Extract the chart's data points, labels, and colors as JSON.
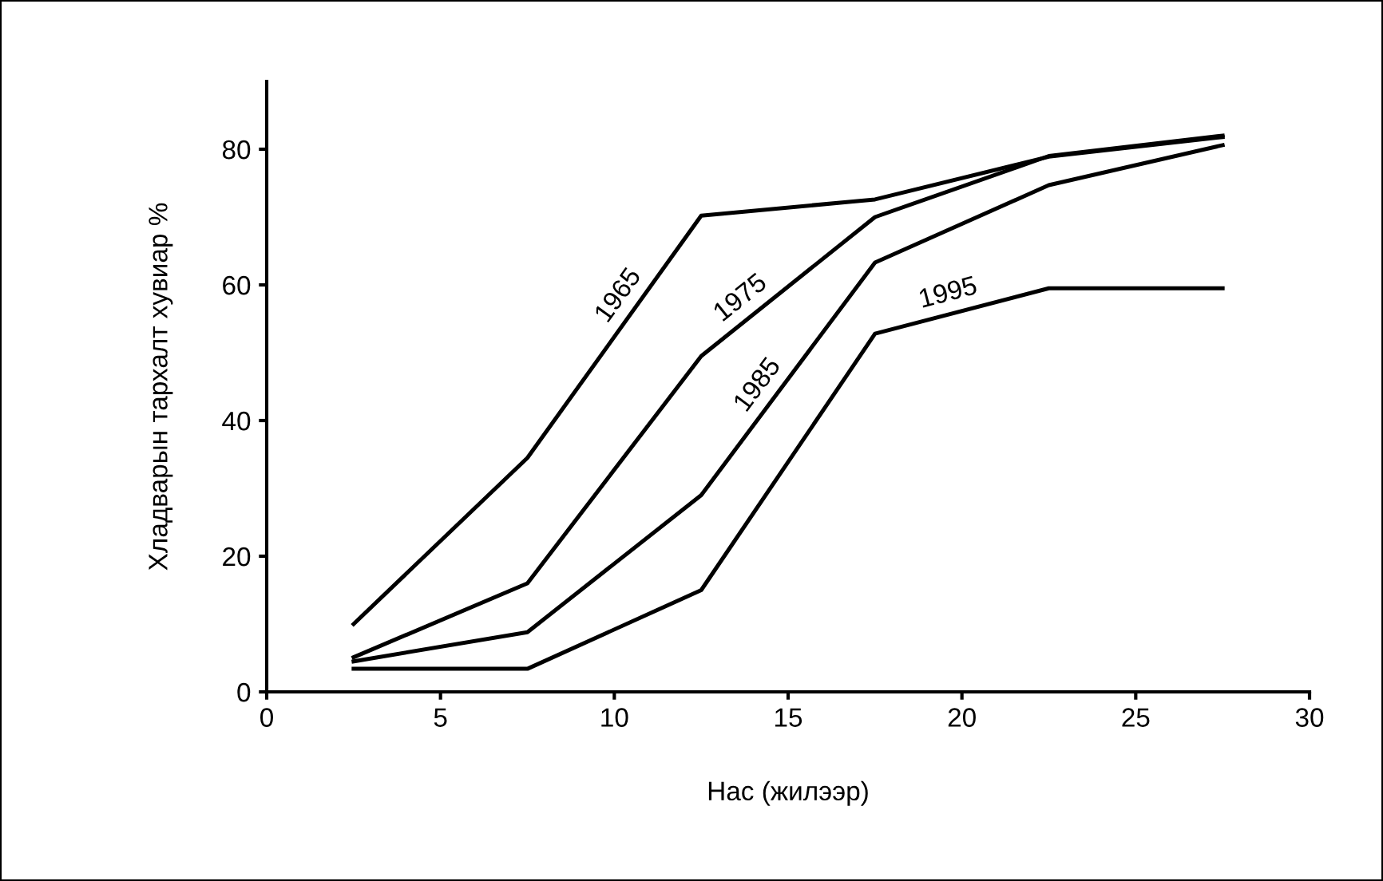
{
  "chart_data": {
    "type": "line",
    "xlabel": "Нас (жилээр)",
    "ylabel": "Хладварын тархалт хувиар %",
    "x": [
      2.5,
      7.5,
      12.5,
      17.5,
      22.5,
      27.5
    ],
    "series": [
      {
        "name": "1965",
        "color": "#000000",
        "values": [
          10,
          34.5,
          70.2,
          72.6,
          78.9,
          81.8
        ]
      },
      {
        "name": "1975",
        "color": "#000000",
        "values": [
          5.1,
          16,
          49.5,
          70,
          79,
          82
        ]
      },
      {
        "name": "1985",
        "color": "#000000",
        "values": [
          4.5,
          8.8,
          29,
          63.3,
          74.7,
          80.6
        ]
      },
      {
        "name": "1995",
        "color": "#000000",
        "values": [
          3.4,
          3.4,
          15,
          52.8,
          59.5,
          59.5
        ]
      }
    ],
    "xlim": [
      0,
      30
    ],
    "ylim": [
      0,
      90
    ],
    "xticks": [
      0,
      5,
      10,
      15,
      20,
      25,
      30
    ],
    "yticks": [
      0,
      20,
      40,
      60,
      80
    ],
    "grid": false,
    "legend": false,
    "marker": "none",
    "line_style": "solid"
  }
}
